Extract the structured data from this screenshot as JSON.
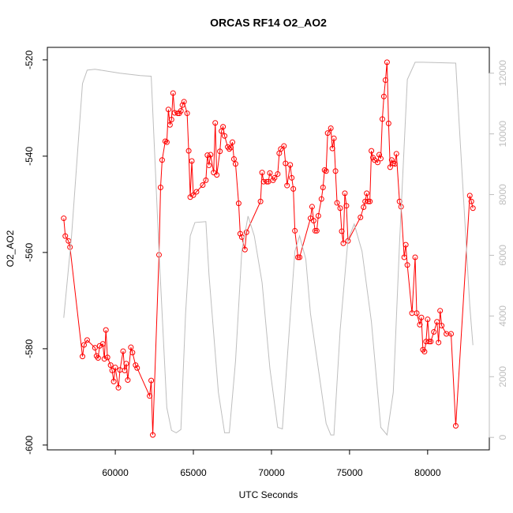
{
  "chart_data": {
    "type": "line",
    "title": "ORCAS RF14 O2_AO2",
    "x_label": "UTC Seconds",
    "y_label": "O2_AO2",
    "xlim": [
      55650,
      83950
    ],
    "xticks": [
      60000,
      65000,
      70000,
      75000,
      80000
    ],
    "ylim": [
      -601,
      -517.4
    ],
    "yticks": [
      -600,
      -580,
      -560,
      -540,
      -520
    ],
    "y2lim": [
      -411,
      12851
    ],
    "y2ticks": [
      0,
      2000,
      4000,
      6000,
      8000,
      10000,
      12000
    ],
    "y2_color": "#bebebe",
    "series": [
      {
        "color": "#ff0000",
        "markers": true,
        "x": [
          56700,
          56800,
          57000,
          57100,
          57900,
          58000,
          58200,
          58700,
          58800,
          58900,
          59000,
          59200,
          59300,
          59400,
          59500,
          59700,
          59800,
          59900,
          60000,
          60200,
          60300,
          60500,
          60600,
          60700,
          60800,
          61000,
          61100,
          61300,
          61400,
          62200,
          62300,
          62400,
          62800,
          62900,
          63000,
          63200,
          63300,
          63400,
          63500,
          63600,
          63700,
          63800,
          64000,
          64100,
          64200,
          64300,
          64400,
          64600,
          64700,
          64800,
          64900,
          65000,
          65200,
          65600,
          65800,
          65900,
          66000,
          66100,
          66300,
          66400,
          66500,
          66700,
          66800,
          66900,
          67000,
          67200,
          67300,
          67400,
          67500,
          67600,
          67700,
          67900,
          68000,
          68100,
          68300,
          68400,
          69300,
          69400,
          69500,
          69700,
          69800,
          69900,
          70100,
          70200,
          70400,
          70500,
          70600,
          70800,
          70900,
          71000,
          71200,
          71300,
          71400,
          71500,
          71700,
          71800,
          72500,
          72600,
          72700,
          72800,
          72900,
          73000,
          73200,
          73300,
          73400,
          73500,
          73600,
          73800,
          73900,
          74000,
          74100,
          74200,
          74400,
          74500,
          74600,
          74700,
          74800,
          74900,
          75700,
          75900,
          76000,
          76100,
          76200,
          76300,
          76400,
          76500,
          76600,
          76800,
          76900,
          77000,
          77100,
          77200,
          77300,
          77400,
          77500,
          77600,
          77700,
          77800,
          77900,
          78000,
          78200,
          78300,
          78500,
          78600,
          78700,
          79000,
          79200,
          79300,
          79500,
          79600,
          79700,
          79800,
          79900,
          80000,
          80100,
          80200,
          80400,
          80600,
          80700,
          80800,
          80900,
          81200,
          81500,
          81800,
          82700,
          82800,
          82900
        ],
        "values": [
          -552.9,
          -556.6,
          -557.6,
          -558.9,
          -581.6,
          -579.2,
          -578.2,
          -579.8,
          -581.5,
          -581.9,
          -579.4,
          -579.0,
          -582.1,
          -576.1,
          -581.8,
          -583.4,
          -584.5,
          -586.8,
          -583.9,
          -588.1,
          -584.4,
          -580.5,
          -584.5,
          -583.1,
          -586.5,
          -579.7,
          -580.8,
          -583.4,
          -584.0,
          -589.8,
          -586.6,
          -597.9,
          -560.5,
          -546.5,
          -540.8,
          -536.9,
          -537.1,
          -530.3,
          -533.5,
          -532.4,
          -526.9,
          -531.0,
          -531.1,
          -531.1,
          -530.6,
          -529.4,
          -528.7,
          -531.1,
          -538.9,
          -548.5,
          -541.0,
          -548.1,
          -547.4,
          -546.0,
          -545.0,
          -539.8,
          -541.9,
          -539.7,
          -543.4,
          -533.1,
          -543.9,
          -539.0,
          -534.8,
          -533.9,
          -535.8,
          -538.1,
          -538.5,
          -538.2,
          -537.1,
          -540.6,
          -541.6,
          -549.8,
          -556.1,
          -556.8,
          -559.4,
          -555.8,
          -549.4,
          -543.4,
          -545.3,
          -545.3,
          -545.3,
          -543.5,
          -545.0,
          -544.5,
          -543.7,
          -539.4,
          -538.5,
          -537.9,
          -541.5,
          -546.1,
          -541.8,
          -544.5,
          -546.8,
          -555.5,
          -561.0,
          -561.0,
          -552.9,
          -550.5,
          -553.4,
          -555.5,
          -555.5,
          -552.4,
          -548.9,
          -546.5,
          -542.9,
          -543.1,
          -535.2,
          -534.2,
          -538.4,
          -536.3,
          -543.1,
          -549.7,
          -550.8,
          -555.6,
          -558.1,
          -547.7,
          -550.3,
          -557.6,
          -552.7,
          -550.6,
          -549.4,
          -547.7,
          -549.4,
          -549.4,
          -538.9,
          -540.3,
          -540.8,
          -541.3,
          -539.7,
          -540.5,
          -532.3,
          -527.6,
          -524.2,
          -520.5,
          -533.2,
          -542.3,
          -540.8,
          -541.5,
          -541.6,
          -539.5,
          -549.4,
          -550.5,
          -561.0,
          -558.4,
          -562.6,
          -572.6,
          -561.0,
          -572.6,
          -575.0,
          -573.5,
          -580.2,
          -580.6,
          -578.5,
          -573.9,
          -578.5,
          -578.5,
          -576.5,
          -574.4,
          -578.7,
          -572.1,
          -575.2,
          -576.9,
          -576.9,
          -596.0,
          -548.2,
          -549.4,
          -550.8
        ]
      },
      {
        "color": "#bebebe",
        "axis": "y2",
        "markers": false,
        "x": [
          56700,
          57200,
          57900,
          58200,
          58700,
          60300,
          61600,
          62300,
          62800,
          63300,
          63600,
          63900,
          64200,
          64500,
          64800,
          65100,
          65800,
          66000,
          66600,
          67000,
          67300,
          67700,
          68100,
          68500,
          68900,
          69400,
          69900,
          70400,
          70700,
          71000,
          71500,
          71800,
          72200,
          72500,
          73500,
          73800,
          74000,
          74400,
          74900,
          75300,
          75800,
          76400,
          77000,
          77400,
          77800,
          78200,
          78700,
          79200,
          79700,
          81800,
          82000,
          82700,
          82900
        ],
        "values": [
          3940,
          6640,
          11660,
          12100,
          12130,
          12000,
          11920,
          11900,
          6130,
          980,
          230,
          150,
          260,
          4070,
          6640,
          7080,
          7110,
          5360,
          1490,
          150,
          150,
          2520,
          6130,
          7290,
          6640,
          5100,
          2270,
          330,
          280,
          2520,
          6130,
          6640,
          5870,
          4070,
          460,
          80,
          80,
          3550,
          6510,
          7030,
          6130,
          3810,
          330,
          80,
          1490,
          6390,
          11790,
          12360,
          12360,
          12330,
          10510,
          4330,
          3040
        ]
      }
    ]
  }
}
